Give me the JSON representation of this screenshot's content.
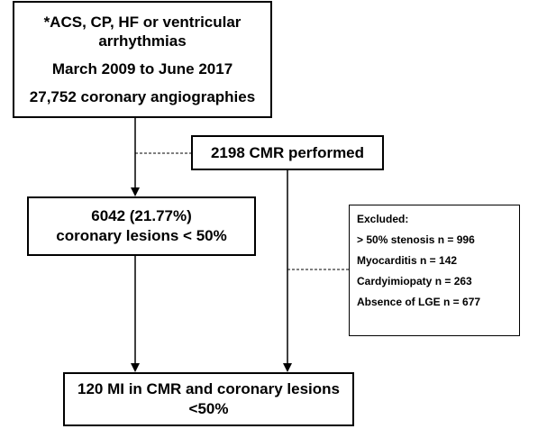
{
  "start_box": {
    "line1": "*ACS, CP, HF or ventricular",
    "line2": "arrhythmias",
    "period": "March 2009 to June 2017",
    "count": "27,752 coronary angiographies"
  },
  "cmr_box": {
    "text": "2198 CMR performed"
  },
  "lesions_box": {
    "line1": "6042 (21.77%)",
    "line2": "coronary lesions < 50%"
  },
  "excluded_box": {
    "title": "Excluded:",
    "items": [
      "> 50% stenosis n = 996",
      "Myocarditis n  = 142",
      "Cardyimiopaty n = 263",
      "Absence of LGE n = 677"
    ]
  },
  "result_box": {
    "line1": "120 MI in CMR and coronary lesions",
    "line2": "<50%"
  }
}
